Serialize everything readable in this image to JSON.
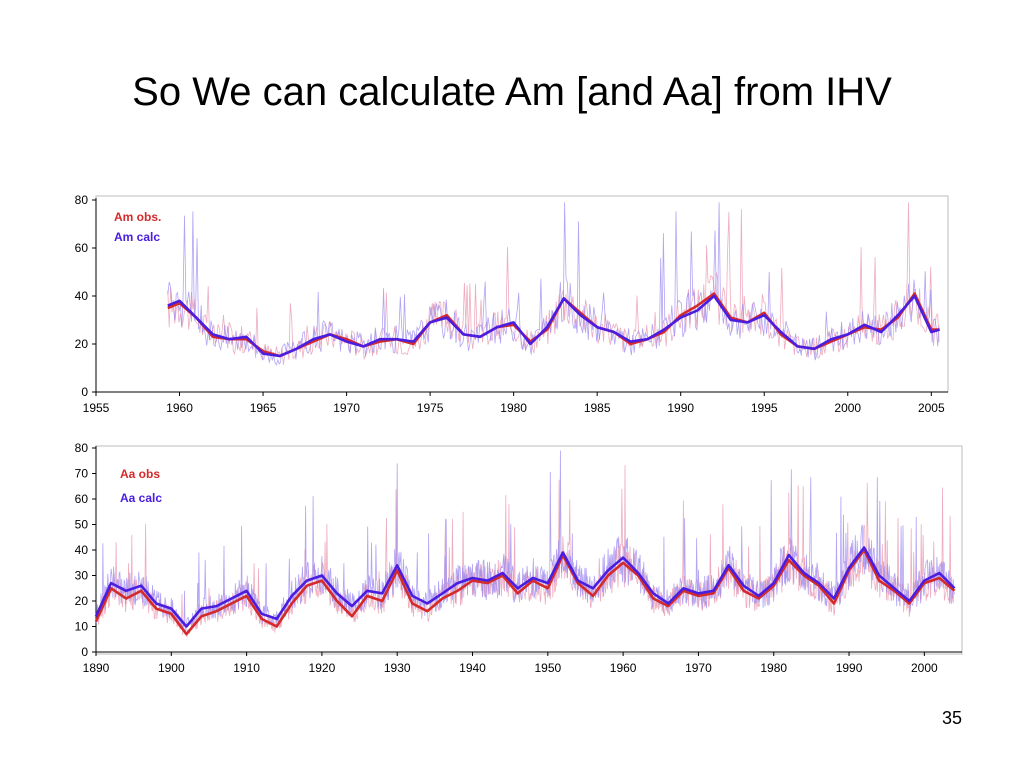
{
  "slide": {
    "title": "So We can calculate Am [and Aa] from IHV",
    "page_number": "35"
  },
  "colors": {
    "observed": "#d42a2a",
    "calculated": "#4a1ee0",
    "monthly_calc": "#9a86f0",
    "monthly_obs": "#e06a8a",
    "axis": "#000000",
    "frame": "#bdbdbd"
  },
  "chart_data": [
    {
      "type": "line",
      "xlim": [
        1955,
        2006
      ],
      "ylim": [
        0,
        80
      ],
      "xticks": [
        1955,
        1960,
        1965,
        1970,
        1975,
        1980,
        1985,
        1990,
        1995,
        2000,
        2005
      ],
      "yticks": [
        0,
        20,
        40,
        60,
        80
      ],
      "legend_position": "top-left",
      "series": [
        {
          "name": "Am obs.",
          "color": "#d42a2a",
          "x": [
            1959.3,
            1960,
            1961,
            1962,
            1963,
            1964,
            1965,
            1966,
            1967,
            1968,
            1969,
            1970,
            1971,
            1972,
            1973,
            1974,
            1975,
            1976,
            1977,
            1978,
            1979,
            1980,
            1981,
            1982,
            1983,
            1984,
            1985,
            1986,
            1987,
            1988,
            1989,
            1990,
            1991,
            1992,
            1993,
            1994,
            1995,
            1996,
            1997,
            1998,
            1999,
            2000,
            2001,
            2002,
            2003,
            2004,
            2005,
            2005.5
          ],
          "y": [
            35,
            37,
            31,
            23,
            22,
            22,
            17,
            15,
            18,
            21,
            24,
            22,
            19,
            21,
            22,
            20,
            29,
            32,
            24,
            23,
            27,
            28,
            21,
            26,
            39,
            33,
            27,
            25,
            20,
            22,
            25,
            32,
            36,
            41,
            31,
            29,
            33,
            24,
            19,
            18,
            21,
            24,
            27,
            26,
            31,
            41,
            26,
            26
          ]
        },
        {
          "name": "Am calc",
          "color": "#4a1ee0",
          "x": [
            1959.3,
            1960,
            1961,
            1962,
            1963,
            1964,
            1965,
            1966,
            1967,
            1968,
            1969,
            1970,
            1971,
            1972,
            1973,
            1974,
            1975,
            1976,
            1977,
            1978,
            1979,
            1980,
            1981,
            1982,
            1983,
            1984,
            1985,
            1986,
            1987,
            1988,
            1989,
            1990,
            1991,
            1992,
            1993,
            1994,
            1995,
            1996,
            1997,
            1998,
            1999,
            2000,
            2001,
            2002,
            2003,
            2004,
            2005,
            2005.5
          ],
          "y": [
            36,
            38,
            31,
            24,
            22,
            23,
            16,
            15,
            18,
            22,
            24,
            21,
            19,
            22,
            22,
            21,
            29,
            31,
            24,
            23,
            27,
            29,
            20,
            27,
            39,
            32,
            27,
            25,
            21,
            22,
            26,
            31,
            34,
            40,
            30,
            29,
            32,
            25,
            19,
            18,
            22,
            24,
            28,
            25,
            32,
            40,
            25,
            26
          ]
        }
      ]
    },
    {
      "type": "line",
      "xlim": [
        1890,
        2005
      ],
      "ylim": [
        0,
        80
      ],
      "xticks": [
        1890,
        1900,
        1910,
        1920,
        1930,
        1940,
        1950,
        1960,
        1970,
        1980,
        1990,
        2000
      ],
      "yticks": [
        0,
        10,
        20,
        30,
        40,
        50,
        60,
        70,
        80
      ],
      "legend_position": "top-left",
      "series": [
        {
          "name": "Aa obs",
          "color": "#d42a2a",
          "x": [
            1890,
            1892,
            1894,
            1896,
            1898,
            1900,
            1902,
            1904,
            1906,
            1908,
            1910,
            1912,
            1914,
            1916,
            1918,
            1920,
            1922,
            1924,
            1926,
            1928,
            1930,
            1932,
            1934,
            1936,
            1938,
            1940,
            1942,
            1944,
            1946,
            1948,
            1950,
            1952,
            1954,
            1956,
            1958,
            1960,
            1962,
            1964,
            1966,
            1968,
            1970,
            1972,
            1974,
            1976,
            1978,
            1980,
            1982,
            1984,
            1986,
            1988,
            1990,
            1992,
            1994,
            1996,
            1998,
            2000,
            2002,
            2004
          ],
          "y": [
            12,
            25,
            21,
            24,
            17,
            15,
            7,
            14,
            16,
            19,
            22,
            13,
            10,
            19,
            26,
            28,
            20,
            14,
            22,
            20,
            32,
            19,
            16,
            21,
            24,
            28,
            27,
            30,
            23,
            28,
            25,
            38,
            27,
            22,
            30,
            35,
            30,
            21,
            18,
            24,
            22,
            23,
            33,
            24,
            21,
            26,
            36,
            30,
            26,
            19,
            32,
            40,
            28,
            24,
            19,
            27,
            29,
            24
          ]
        },
        {
          "name": "Aa calc",
          "color": "#4a1ee0",
          "x": [
            1890,
            1892,
            1894,
            1896,
            1898,
            1900,
            1902,
            1904,
            1906,
            1908,
            1910,
            1912,
            1914,
            1916,
            1918,
            1920,
            1922,
            1924,
            1926,
            1928,
            1930,
            1932,
            1934,
            1936,
            1938,
            1940,
            1942,
            1944,
            1946,
            1948,
            1950,
            1952,
            1954,
            1956,
            1958,
            1960,
            1962,
            1964,
            1966,
            1968,
            1970,
            1972,
            1974,
            1976,
            1978,
            1980,
            1982,
            1984,
            1986,
            1988,
            1990,
            1992,
            1994,
            1996,
            1998,
            2000,
            2002,
            2004
          ],
          "y": [
            14,
            27,
            24,
            26,
            19,
            17,
            10,
            17,
            18,
            21,
            24,
            15,
            13,
            22,
            28,
            30,
            23,
            18,
            24,
            23,
            34,
            22,
            19,
            23,
            27,
            29,
            28,
            31,
            25,
            29,
            27,
            39,
            28,
            25,
            32,
            37,
            31,
            23,
            19,
            25,
            23,
            24,
            34,
            26,
            22,
            27,
            38,
            31,
            27,
            21,
            33,
            41,
            30,
            25,
            20,
            28,
            31,
            25
          ]
        }
      ]
    }
  ]
}
